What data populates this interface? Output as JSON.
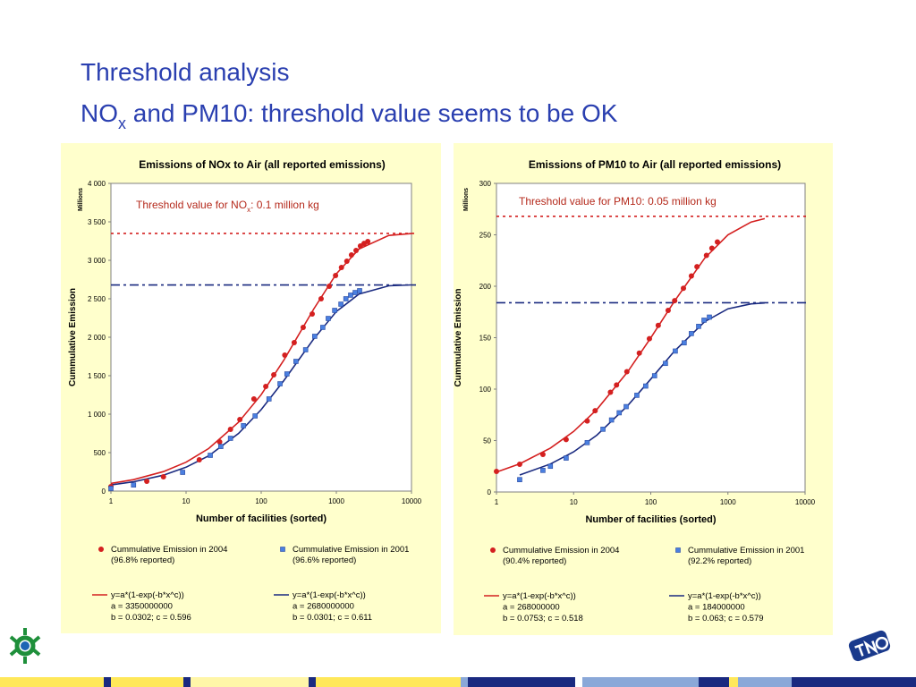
{
  "slide": {
    "title_line1": "Threshold analysis",
    "title_line2": {
      "main": "NO",
      "sub": "x",
      "rest": " and PM10: threshold value seems to be OK"
    }
  },
  "chart_data": [
    {
      "type": "scatter",
      "title": "Emissions of NOx to Air (all reported emissions)",
      "xlabel": "Number of facilities (sorted)",
      "ylabel": "Cummulative Emission",
      "y_unit": "Millions",
      "xscale": "log",
      "xlim": [
        1,
        10000
      ],
      "xticks": [
        1,
        10,
        100,
        1000,
        10000
      ],
      "ylim": [
        0,
        4000
      ],
      "yticks": [
        0,
        500,
        {
          "value": 1000,
          "label": "1 000"
        },
        {
          "value": 1500,
          "label": "1 500"
        },
        {
          "value": 2000,
          "label": "2 000"
        },
        {
          "value": 2500,
          "label": "2 500"
        },
        {
          "value": 3000,
          "label": "3 000"
        },
        {
          "value": 3500,
          "label": "3 500"
        },
        {
          "value": 4000,
          "label": "4 000"
        }
      ],
      "annotation": {
        "main": "Threshold value for NO",
        "sub": "x",
        "rest": ": 0.1 million kg",
        "color": "#b52a1c"
      },
      "reference_lines": [
        {
          "value": 3350,
          "color": "#d42020",
          "style": "dotted"
        },
        {
          "value": 2680,
          "color": "#1a2a80",
          "style": "dashdot"
        }
      ],
      "series": [
        {
          "name": "Cummulative Emission in 2004",
          "name_note": "(96.8% reported)",
          "marker": "circle",
          "color": "#d42020",
          "x": [
            1,
            3,
            5,
            15,
            28,
            39,
            52,
            80,
            115,
            147,
            206,
            275,
            362,
            477,
            627,
            804,
            976,
            1170,
            1380,
            1590,
            1830,
            2090,
            2340,
            2620
          ],
          "values": [
            58,
            128,
            186,
            407,
            640,
            802,
            930,
            1198,
            1360,
            1512,
            1767,
            1930,
            2128,
            2302,
            2500,
            2663,
            2802,
            2907,
            2988,
            3070,
            3128,
            3186,
            3220,
            3244
          ]
        },
        {
          "name": "Cummulative Emission in 2001",
          "name_note": "(96.6% reported)",
          "marker": "square",
          "color": "#4a7fe0",
          "x": [
            1,
            2,
            9,
            21,
            29,
            39,
            58,
            83,
            127,
            178,
            220,
            290,
            390,
            515,
            660,
            780,
            950,
            1150,
            1340,
            1550,
            1780,
            2040
          ],
          "values": [
            35,
            80,
            244,
            465,
            580,
            686,
            850,
            977,
            1198,
            1395,
            1523,
            1686,
            1837,
            2012,
            2128,
            2244,
            2349,
            2430,
            2500,
            2547,
            2581,
            2605
          ]
        },
        {
          "name": "y=a*(1-exp(-b*x^c))",
          "legend_lines": [
            "a = 3350000000",
            "b = 0.0302; c = 0.596"
          ],
          "marker": "line",
          "color": "#d42020",
          "x": [
            1,
            2,
            5,
            10,
            20,
            50,
            100,
            200,
            500,
            1000,
            2000,
            5000,
            10000
          ],
          "values": [
            100,
            149,
            254,
            376,
            553,
            895,
            1253,
            1702,
            2366,
            2824,
            3146,
            3323,
            3348
          ]
        },
        {
          "name": "y=a*(1-exp(-b*x^c))",
          "legend_lines": [
            "a = 2680000000",
            "b = 0.0301; c = 0.611"
          ],
          "marker": "line",
          "color": "#1a2a80",
          "x": [
            1,
            2,
            5,
            10,
            20,
            50,
            100,
            200,
            500,
            1000,
            2000,
            5000,
            10000
          ],
          "values": [
            80,
            121,
            207,
            311,
            458,
            750,
            1059,
            1436,
            1978,
            2334,
            2562,
            2669,
            2680
          ]
        }
      ]
    },
    {
      "type": "scatter",
      "title": "Emissions of PM10 to Air (all reported emissions)",
      "xlabel": "Number of facilities (sorted)",
      "ylabel": "Cummulative Emission",
      "y_unit": "Millions",
      "xscale": "log",
      "xlim": [
        1,
        10000
      ],
      "xticks": [
        1,
        10,
        100,
        1000,
        10000
      ],
      "ylim": [
        0,
        300
      ],
      "yticks": [
        0,
        50,
        100,
        150,
        200,
        250,
        300
      ],
      "annotation": {
        "main": "Threshold value for PM10: 0.05 million kg",
        "color": "#b52a1c"
      },
      "reference_lines": [
        {
          "value": 268,
          "color": "#d42020",
          "style": "dotted"
        },
        {
          "value": 184,
          "color": "#1a2a80",
          "style": "dashdot"
        }
      ],
      "series": [
        {
          "name": "Cummulative Emission in 2004",
          "name_note": "(90.4% reported)",
          "marker": "circle",
          "color": "#d42020",
          "x": [
            1,
            2,
            4,
            8,
            15,
            19,
            30,
            36,
            49,
            71,
            96,
            125,
            168,
            204,
            265,
            336,
            397,
            527,
            620,
            730
          ],
          "values": [
            20,
            27,
            36.5,
            51,
            69,
            79,
            97,
            104,
            117,
            135,
            149,
            162,
            176.5,
            186,
            198,
            210,
            219,
            230,
            237,
            243
          ]
        },
        {
          "name": "Cummulative Emission in 2001",
          "name_note": "(92.2% reported)",
          "marker": "square",
          "color": "#4a7fe0",
          "x": [
            2,
            4,
            5,
            8,
            15,
            24,
            31,
            39,
            48,
            66,
            86,
            112,
            155,
            208,
            271,
            336,
            417,
            490,
            575
          ],
          "values": [
            12,
            21,
            25,
            33,
            48,
            61,
            70,
            77,
            83,
            94,
            103,
            113,
            125,
            137,
            145,
            154,
            161,
            167,
            170
          ]
        },
        {
          "name": "y=a*(1-exp(-b*x^c))",
          "legend_lines": [
            "a = 268000000",
            "b = 0.0753; c = 0.518"
          ],
          "marker": "line",
          "color": "#d42020",
          "x": [
            1,
            2,
            5,
            10,
            20,
            50,
            100,
            200,
            500,
            1000,
            2000,
            3000
          ],
          "values": [
            19.4,
            27.4,
            42.7,
            58.9,
            80.2,
            116.6,
            149.8,
            184.9,
            227.3,
            250,
            262.4,
            265.7
          ]
        },
        {
          "name": "y=a*(1-exp(-b*x^c))",
          "legend_lines": [
            "a = 184000000",
            "b = 0.063; c = 0.579"
          ],
          "marker": "line",
          "color": "#1a2a80",
          "x": [
            2,
            5,
            10,
            20,
            50,
            100,
            200,
            500,
            1000,
            2000,
            3000
          ],
          "values": [
            16.5,
            27.2,
            39.0,
            55.2,
            83.7,
            109.7,
            136.5,
            165.6,
            178.1,
            182.9,
            183.7
          ]
        }
      ]
    }
  ]
}
